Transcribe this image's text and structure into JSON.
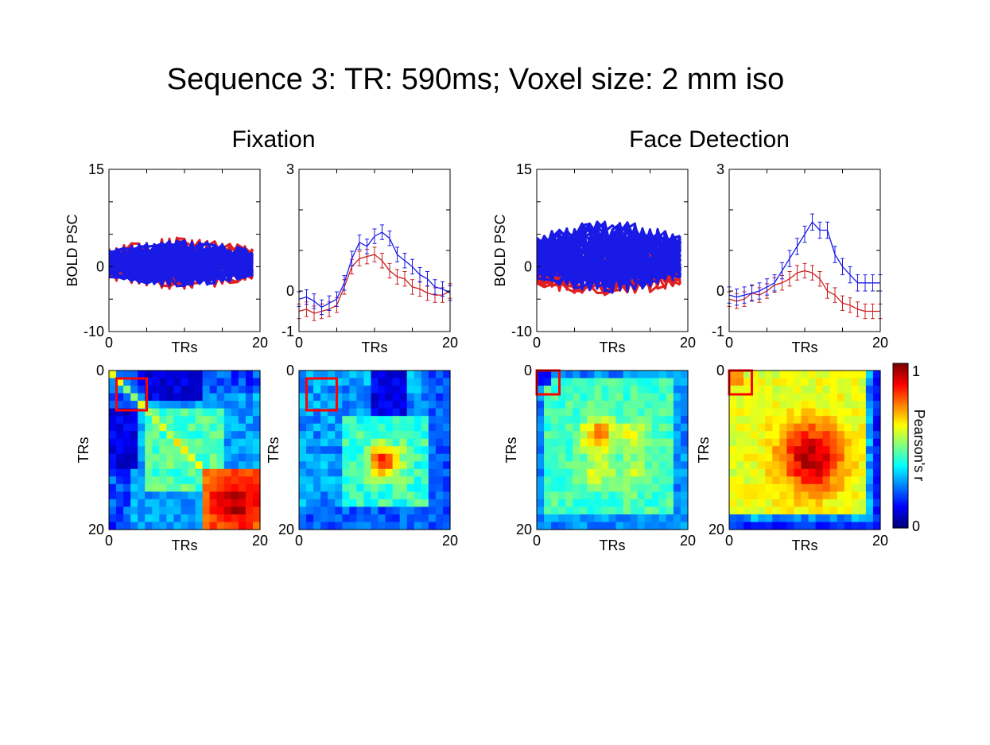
{
  "figure_title": "Sequence 3: TR: 590ms; Voxel size: 2 mm iso",
  "chart_data": [
    {
      "id": "fixation",
      "title": "Fixation",
      "panels": [
        {
          "type": "line",
          "name": "Fixation individual voxel time courses",
          "ylabel": "BOLD PSC",
          "xlabel": "TRs",
          "xlim": [
            0,
            20
          ],
          "ylim": [
            -10,
            15
          ],
          "xticks": [
            0,
            20
          ],
          "yticks": [
            -10,
            0,
            15
          ],
          "series_colors": [
            "#e02020",
            "#1a1ae6"
          ],
          "band": {
            "red": [
              -3.5,
              4.5
            ],
            "blue": [
              -3,
              4
            ]
          }
        },
        {
          "type": "line",
          "name": "Fixation mean time courses",
          "xlabel": "TRs",
          "xlim": [
            0,
            20
          ],
          "ylim": [
            -1,
            3
          ],
          "xticks": [
            0,
            20
          ],
          "yticks": [
            -1,
            0,
            3
          ],
          "x": [
            0,
            1,
            2,
            3,
            4,
            5,
            6,
            7,
            8,
            9,
            10,
            11,
            12,
            13,
            14,
            15,
            16,
            17,
            18,
            19,
            20
          ],
          "series": [
            {
              "name": "blue",
              "color": "#1a1ae6",
              "values": [
                -0.2,
                -0.15,
                -0.25,
                -0.4,
                -0.3,
                -0.2,
                0.2,
                0.8,
                1.2,
                1.1,
                1.35,
                1.45,
                1.3,
                0.9,
                0.75,
                0.6,
                0.4,
                0.3,
                0.1,
                0.05,
                -0.05
              ],
              "err": 0.18
            },
            {
              "name": "red",
              "color": "#cc1f1f",
              "values": [
                -0.5,
                -0.45,
                -0.55,
                -0.5,
                -0.45,
                -0.35,
                0.1,
                0.6,
                0.8,
                0.85,
                0.9,
                0.75,
                0.5,
                0.35,
                0.3,
                0.1,
                0.05,
                -0.05,
                -0.1,
                -0.1,
                0.0
              ],
              "err": 0.18
            }
          ]
        },
        {
          "type": "heatmap",
          "name": "Fixation correlation matrix red",
          "xlabel": "TRs",
          "ylabel": "TRs",
          "xlim": [
            0,
            20
          ],
          "ylim": [
            0,
            20
          ],
          "xticks": [
            0,
            20
          ],
          "yticks": [
            0,
            20
          ],
          "pattern": "fix1",
          "highlight": [
            1,
            5
          ]
        },
        {
          "type": "heatmap",
          "name": "Fixation correlation matrix blue",
          "xlabel": "",
          "ylabel": "TRs",
          "xlim": [
            0,
            20
          ],
          "ylim": [
            0,
            20
          ],
          "xticks": [
            0,
            20
          ],
          "yticks": [
            0,
            20
          ],
          "pattern": "fix2",
          "highlight": [
            1,
            5
          ]
        }
      ]
    },
    {
      "id": "face-detection",
      "title": "Face Detection",
      "panels": [
        {
          "type": "line",
          "name": "Face detection individual voxel time courses",
          "ylabel": "BOLD PSC",
          "xlabel": "TRs",
          "xlim": [
            0,
            20
          ],
          "ylim": [
            -10,
            15
          ],
          "xticks": [
            0,
            20
          ],
          "yticks": [
            -10,
            0,
            15
          ],
          "series_colors": [
            "#e02020",
            "#1a1ae6"
          ],
          "band": {
            "red": [
              -4.5,
              3
            ],
            "blue": [
              -4,
              7
            ]
          }
        },
        {
          "type": "line",
          "name": "Face detection mean time courses",
          "xlabel": "TRs",
          "xlim": [
            0,
            20
          ],
          "ylim": [
            -1,
            3
          ],
          "xticks": [
            0,
            20
          ],
          "yticks": [
            -1,
            0,
            3
          ],
          "x": [
            0,
            1,
            2,
            3,
            4,
            5,
            6,
            7,
            8,
            9,
            10,
            11,
            12,
            13,
            14,
            15,
            16,
            17,
            18,
            19,
            20
          ],
          "series": [
            {
              "name": "blue",
              "color": "#1a1ae6",
              "values": [
                -0.1,
                -0.15,
                -0.1,
                -0.05,
                0.0,
                0.1,
                0.2,
                0.5,
                0.8,
                1.1,
                1.4,
                1.7,
                1.5,
                1.5,
                0.9,
                0.6,
                0.4,
                0.2,
                0.2,
                0.2,
                0.2
              ],
              "err": 0.2
            },
            {
              "name": "red",
              "color": "#cc1f1f",
              "values": [
                -0.2,
                -0.25,
                -0.2,
                -0.05,
                -0.1,
                0.0,
                0.15,
                0.2,
                0.3,
                0.45,
                0.5,
                0.45,
                0.3,
                0.0,
                -0.1,
                -0.3,
                -0.35,
                -0.45,
                -0.5,
                -0.5,
                -0.5
              ],
              "err": 0.18
            }
          ]
        },
        {
          "type": "heatmap",
          "name": "Face detection correlation matrix red",
          "xlabel": "TRs",
          "ylabel": "TRs",
          "xlim": [
            0,
            20
          ],
          "ylim": [
            0,
            20
          ],
          "xticks": [
            0,
            20
          ],
          "yticks": [
            0,
            20
          ],
          "pattern": "face1",
          "highlight": [
            0,
            3
          ]
        },
        {
          "type": "heatmap",
          "name": "Face detection correlation matrix blue",
          "xlabel": "TRs",
          "ylabel": "TRs",
          "xlim": [
            0,
            20
          ],
          "ylim": [
            0,
            20
          ],
          "xticks": [
            0,
            20
          ],
          "yticks": [
            0,
            20
          ],
          "pattern": "face2",
          "highlight": [
            0,
            3
          ]
        }
      ]
    }
  ],
  "colorbar": {
    "label": "Pearson's r",
    "min": "0",
    "max": "1",
    "range": [
      0,
      1
    ],
    "colormap": "jet"
  }
}
